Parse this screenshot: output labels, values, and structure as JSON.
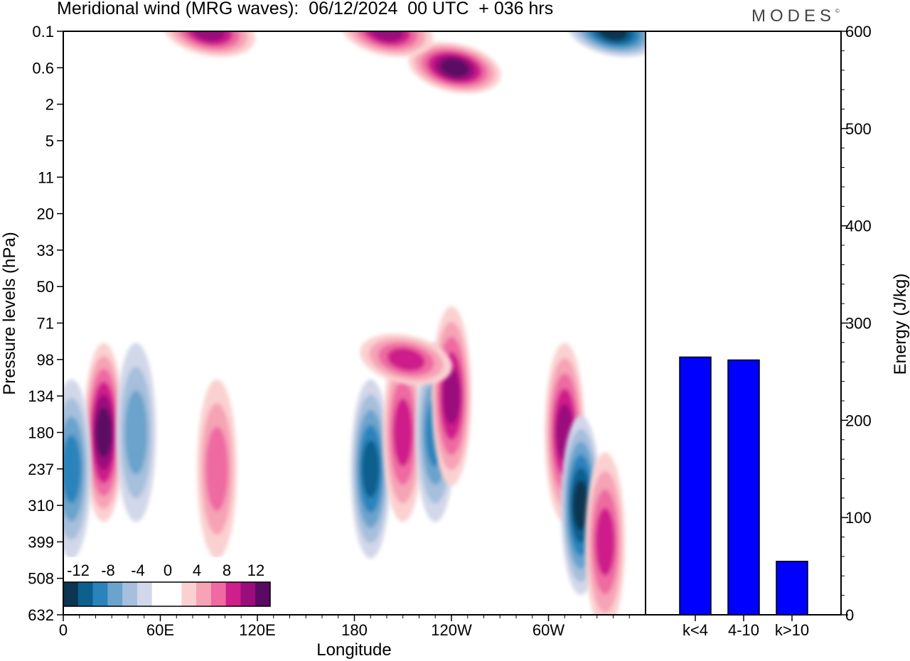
{
  "title": "Meridional wind (MRG waves):  06/12/2024  00 UTC  + 036 hrs",
  "brand": "MODES",
  "brand_mark": "©",
  "colors": {
    "neg": [
      "#0b3550",
      "#0d5f8e",
      "#2a84bb",
      "#6ba3cc",
      "#a5bfdc",
      "#d2d7e9"
    ],
    "pos": [
      "#fbd0d0",
      "#f6a3b6",
      "#ee6aa1",
      "#cf1f8b",
      "#9b0c7d",
      "#5a0a63"
    ],
    "bar": "#0000ff"
  },
  "chart_data": [
    {
      "type": "heatmap",
      "title": "Meridional wind (MRG waves):  06/12/2024  00 UTC  + 036 hrs",
      "xlabel": "Longitude",
      "ylabel": "Pressure levels (hPa)",
      "x_ticks": [
        "0",
        "60E",
        "120E",
        "180",
        "120W",
        "60W"
      ],
      "y_ticks": [
        "0.1",
        "0.6",
        "2",
        "5",
        "11",
        "20",
        "33",
        "50",
        "71",
        "98",
        "134",
        "180",
        "237",
        "310",
        "399",
        "508",
        "632"
      ],
      "colorbar": {
        "labels": [
          "-12",
          "-8",
          "-4",
          "0",
          "4",
          "8",
          "12"
        ],
        "levels": [
          -14,
          -12,
          -10,
          -8,
          -6,
          -4,
          -2,
          2,
          4,
          6,
          8,
          10,
          12
        ]
      },
      "features": [
        {
          "lon": 25,
          "level": "180",
          "value": 13
        },
        {
          "lon": 45,
          "level": "180",
          "value": -6
        },
        {
          "lon": 5,
          "level": "237",
          "value": -8
        },
        {
          "lon": 95,
          "level": "237",
          "value": 6
        },
        {
          "lon": 190,
          "level": "237",
          "value": -9
        },
        {
          "lon": 210,
          "level": "180",
          "value": 8
        },
        {
          "lon": 230,
          "level": "180",
          "value": -8
        },
        {
          "lon": 240,
          "level": "134",
          "value": 9
        },
        {
          "lon": 212,
          "level": "98",
          "value": 8
        },
        {
          "lon": 310,
          "level": "180",
          "value": 10
        },
        {
          "lon": 320,
          "level": "310",
          "value": -13
        },
        {
          "lon": 335,
          "level": "399",
          "value": 7
        },
        {
          "lon": 242,
          "level": "0.6",
          "value": 14
        },
        {
          "lon": 340,
          "level": "0.1",
          "value": -13
        },
        {
          "lon": 90,
          "level": "0.1",
          "value": 9
        },
        {
          "lon": 200,
          "level": "0.1",
          "value": 10
        }
      ]
    },
    {
      "type": "bar",
      "categories": [
        "k<4",
        "4-10",
        "k>10"
      ],
      "values": [
        265,
        262,
        55
      ],
      "ylabel": "Energy (J/kg)",
      "ylim": [
        0,
        600
      ],
      "y_ticks": [
        0,
        100,
        200,
        300,
        400,
        500,
        600
      ]
    }
  ]
}
